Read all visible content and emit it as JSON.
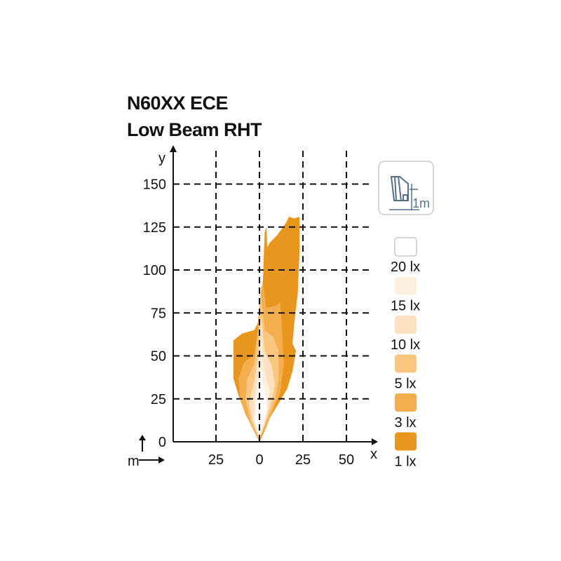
{
  "title_line1": "N60XX ECE",
  "title_line2": "Low Beam RHT",
  "icon": {
    "name": "headlamp-mount-height-icon",
    "label": "1m"
  },
  "unit_label": "m",
  "chart_data": {
    "type": "area",
    "xlabel": "x",
    "ylabel": "y",
    "xlim": [
      -50,
      65
    ],
    "ylim": [
      0,
      168
    ],
    "xticks": [
      -25,
      0,
      25,
      50
    ],
    "xtick_labels": [
      "25",
      "0",
      "25",
      "50"
    ],
    "yticks": [
      0,
      25,
      50,
      75,
      100,
      125,
      150
    ],
    "ytick_labels": [
      "0",
      "25",
      "50",
      "75",
      "100",
      "125",
      "150"
    ],
    "grid": true,
    "legend_placement": "right",
    "series": [
      {
        "name": "1 lx",
        "color": "#E8961E",
        "points": [
          [
            0,
            0
          ],
          [
            -4,
            8
          ],
          [
            -8,
            16
          ],
          [
            -12,
            27
          ],
          [
            -15,
            37
          ],
          [
            -15,
            49
          ],
          [
            -15,
            59
          ],
          [
            -10,
            63
          ],
          [
            -3,
            65
          ],
          [
            -1,
            69
          ],
          [
            1,
            86
          ],
          [
            2,
            94
          ],
          [
            3,
            122
          ],
          [
            4,
            125
          ],
          [
            4.5,
            113
          ],
          [
            6,
            116
          ],
          [
            10,
            120
          ],
          [
            15,
            127
          ],
          [
            17,
            131
          ],
          [
            20,
            130
          ],
          [
            23,
            131
          ],
          [
            23,
            110
          ],
          [
            22,
            86
          ],
          [
            20,
            69
          ],
          [
            19,
            57
          ],
          [
            21,
            53
          ],
          [
            19,
            41
          ],
          [
            16,
            31
          ],
          [
            12,
            24
          ],
          [
            6,
            14
          ],
          [
            2,
            4
          ]
        ]
      },
      {
        "name": "3 lx",
        "color": "#F5AE4E",
        "points": [
          [
            0,
            1
          ],
          [
            -6,
            12
          ],
          [
            -11,
            24
          ],
          [
            -12,
            37
          ],
          [
            -9,
            46
          ],
          [
            -3,
            51
          ],
          [
            -1,
            65
          ],
          [
            1,
            90
          ],
          [
            2,
            92
          ],
          [
            4,
            78
          ],
          [
            9,
            79
          ],
          [
            12,
            81
          ],
          [
            13,
            65
          ],
          [
            14,
            45
          ],
          [
            12,
            29
          ],
          [
            6,
            14
          ]
        ]
      },
      {
        "name": "5 lx",
        "color": "#F9C680",
        "points": [
          [
            0,
            1
          ],
          [
            -5,
            12
          ],
          [
            -8,
            24
          ],
          [
            -7,
            37
          ],
          [
            -3,
            45
          ],
          [
            -1,
            61
          ],
          [
            1,
            86
          ],
          [
            3,
            65
          ],
          [
            8,
            61
          ],
          [
            11,
            53
          ],
          [
            11,
            37
          ],
          [
            9,
            24
          ],
          [
            4,
            12
          ]
        ]
      },
      {
        "name": "10 lx",
        "color": "#FCE0C0",
        "points": [
          [
            0,
            2
          ],
          [
            -4,
            12
          ],
          [
            -6,
            22
          ],
          [
            -3,
            35
          ],
          [
            -1,
            49
          ],
          [
            1,
            73
          ],
          [
            3,
            53
          ],
          [
            7,
            45
          ],
          [
            9,
            33
          ],
          [
            6,
            20
          ],
          [
            3,
            10
          ]
        ]
      },
      {
        "name": "15 lx",
        "color": "#FDF0DF",
        "points": [
          [
            0,
            2
          ],
          [
            -3,
            12
          ],
          [
            -3,
            22
          ],
          [
            -1,
            37
          ],
          [
            1,
            61
          ],
          [
            3,
            41
          ],
          [
            6,
            29
          ],
          [
            4,
            16
          ],
          [
            2,
            8
          ]
        ]
      },
      {
        "name": "20 lx",
        "color": "#FFFFFF",
        "points": [
          [
            0,
            3
          ],
          [
            -2.5,
            12
          ],
          [
            -1.5,
            24
          ],
          [
            0.5,
            45
          ],
          [
            2.5,
            33
          ],
          [
            4.5,
            20
          ],
          [
            2,
            10
          ]
        ]
      }
    ]
  }
}
